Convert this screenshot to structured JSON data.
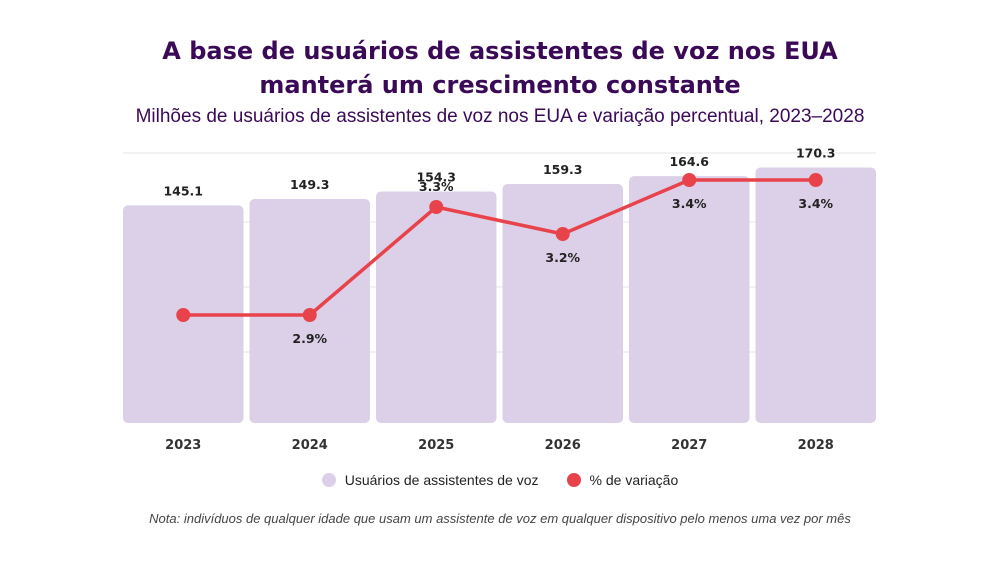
{
  "title_line1": "A base de usuários de assistentes de voz nos EUA",
  "title_line2": "manterá um crescimento constante",
  "subtitle": "Milhões de usuários de assistentes de voz nos EUA e variação percentual, 2023–2028",
  "note": "Nota: indivíduos de qualquer idade que usam um assistente de voz em qualquer dispositivo pelo menos uma vez por mês",
  "colors": {
    "bar": "#dcd0e8",
    "line": "#e8434a",
    "title": "#3b0a57",
    "grid": "#e6e6e6"
  },
  "chart_data": {
    "type": "bar",
    "categories": [
      "2023",
      "2024",
      "2025",
      "2026",
      "2027",
      "2028"
    ],
    "series": [
      {
        "name": "Usuários de assistentes de voz",
        "kind": "bar",
        "values": [
          145.1,
          149.3,
          154.3,
          159.3,
          164.6,
          170.3
        ],
        "labels": [
          "145.1",
          "149.3",
          "154.3",
          "159.3",
          "164.6",
          "170.3"
        ]
      },
      {
        "name": "% de variação",
        "kind": "line",
        "values": [
          null,
          2.9,
          3.3,
          3.2,
          3.4,
          3.4
        ],
        "point_values": [
          2.9,
          2.9,
          3.3,
          3.2,
          3.4,
          3.4
        ],
        "labels": [
          "",
          "2.9%",
          "3.3%",
          "3.2%",
          "3.4%",
          "3.4%"
        ]
      }
    ],
    "bar_axis_range": [
      0,
      180
    ],
    "line_axis_range": [
      2.5,
      3.5
    ],
    "legend_position": "bottom"
  }
}
